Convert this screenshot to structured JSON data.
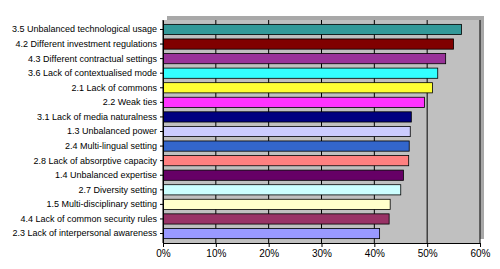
{
  "chart_data": {
    "type": "bar",
    "orientation": "horizontal",
    "categories": [
      "3.5 Unbalanced technological usage",
      "4.2 Different investment regulations",
      "4.3 Different contractual settings",
      "3.6 Lack of contextualised mode",
      "2.1 Lack of commons",
      "2.2 Weak ties",
      "3.1 Lack of media naturalness",
      "1.3 Unbalanced power",
      "2.4 Multi-lingual setting",
      "2.8 Lack of absorptive capacity",
      "1.4 Unbalanced expertise",
      "2.7 Diversity setting",
      "1.5 Multi-disciplinary setting",
      "4.4 Lack of common security rules",
      "2.3 Lack of interpersonal awareness"
    ],
    "values": [
      56.5,
      55,
      53.5,
      52,
      51,
      49.5,
      47,
      46.8,
      46.6,
      46.5,
      45.5,
      45,
      43,
      42.8,
      41
    ],
    "colors": [
      "#339999",
      "#800000",
      "#993399",
      "#33ffff",
      "#ffff33",
      "#ff33ff",
      "#000080",
      "#ccccff",
      "#3366cc",
      "#ff8080",
      "#660066",
      "#ccffff",
      "#ffffcc",
      "#993366",
      "#9999ff"
    ],
    "xlim": [
      0,
      60
    ],
    "xticks": [
      {
        "value": 0,
        "label": "0%"
      },
      {
        "value": 10,
        "label": "10%"
      },
      {
        "value": 20,
        "label": "20%"
      },
      {
        "value": 30,
        "label": "30%"
      },
      {
        "value": 40,
        "label": "40%"
      },
      {
        "value": 50,
        "label": "50%"
      },
      {
        "value": 60,
        "label": "60%"
      }
    ],
    "grid": true
  }
}
